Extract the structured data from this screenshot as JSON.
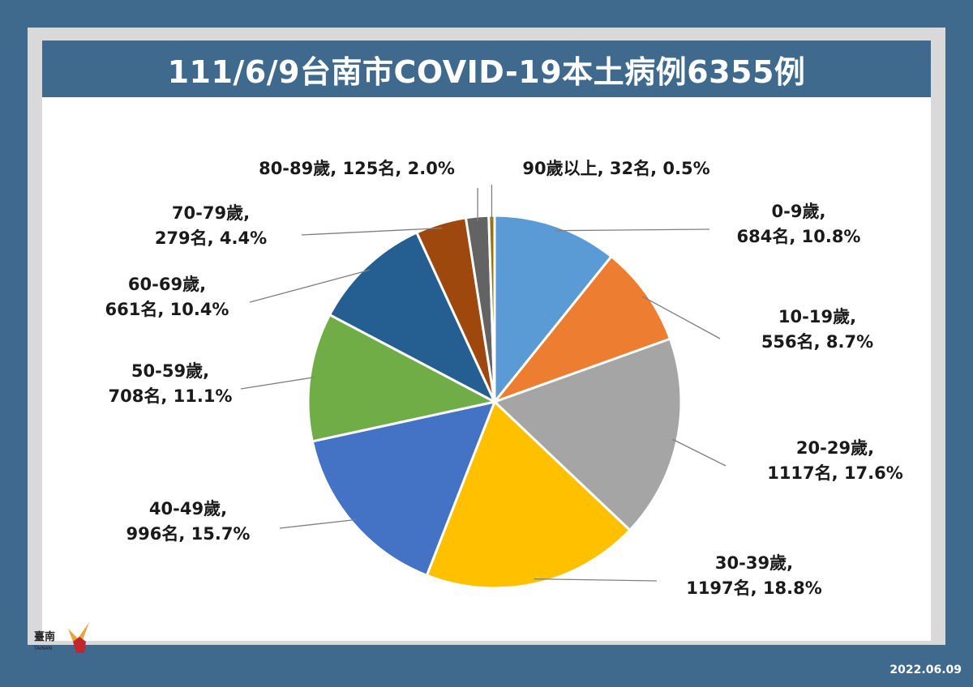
{
  "chart_data": {
    "type": "pie",
    "title": "111/6/9台南市COVID-19本土病例6355例",
    "slices": [
      {
        "label_line1": "0-9歲,",
        "label_line2": "684名, 10.8%",
        "value": 684,
        "percent": 10.8,
        "color": "#5b9bd5"
      },
      {
        "label_line1": "10-19歲,",
        "label_line2": "556名, 8.7%",
        "value": 556,
        "percent": 8.7,
        "color": "#ed7d31"
      },
      {
        "label_line1": "20-29歲,",
        "label_line2": "1117名, 17.6%",
        "value": 1117,
        "percent": 17.6,
        "color": "#a5a5a5"
      },
      {
        "label_line1": "30-39歲,",
        "label_line2": "1197名, 18.8%",
        "value": 1197,
        "percent": 18.8,
        "color": "#ffc000"
      },
      {
        "label_line1": "40-49歲,",
        "label_line2": "996名, 15.7%",
        "value": 996,
        "percent": 15.7,
        "color": "#4472c4"
      },
      {
        "label_line1": "50-59歲,",
        "label_line2": "708名, 11.1%",
        "value": 708,
        "percent": 11.1,
        "color": "#70ad47"
      },
      {
        "label_line1": "60-69歲,",
        "label_line2": "661名, 10.4%",
        "value": 661,
        "percent": 10.4,
        "color": "#255e91"
      },
      {
        "label_line1": "70-79歲,",
        "label_line2": "279名, 4.4%",
        "value": 279,
        "percent": 4.4,
        "color": "#9e480e"
      },
      {
        "label_line1": "80-89歲, 125名, 2.0%",
        "label_line2": "",
        "value": 125,
        "percent": 2.0,
        "color": "#636363"
      },
      {
        "label_line1": "90歲以上, 32名, 0.5%",
        "label_line2": "",
        "value": 32,
        "percent": 0.5,
        "color": "#997300"
      }
    ]
  },
  "logo": {
    "text": "臺南",
    "subtext": "TAINAN"
  },
  "footer": {
    "date": "2022.06.09"
  }
}
